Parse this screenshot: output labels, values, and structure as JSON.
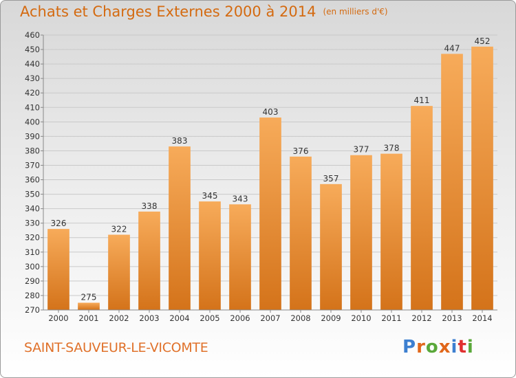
{
  "header": {
    "title": "Achats et Charges Externes 2000 à 2014",
    "unit": "(en milliers d'€)"
  },
  "footer": {
    "town": "SAINT-SAUVEUR-LE-VICOMTE",
    "logo": "Proxiti"
  },
  "colors": {
    "bar_light": "#f5a652",
    "bar_dark": "#d8761c",
    "title": "#d46a10",
    "logo": [
      "#3d7fd0",
      "#e1671b",
      "#5aa83a",
      "#e1671b",
      "#3d7fd0",
      "#e03030",
      "#5aa83a"
    ]
  },
  "chart_data": {
    "type": "bar",
    "title": "Achats et Charges Externes 2000 à 2014",
    "subtitle": "(en milliers d'€)",
    "categories": [
      "2000",
      "2001",
      "2002",
      "2003",
      "2004",
      "2005",
      "2006",
      "2007",
      "2008",
      "2009",
      "2010",
      "2011",
      "2012",
      "2013",
      "2014"
    ],
    "values": [
      326,
      275,
      322,
      338,
      383,
      345,
      343,
      403,
      376,
      357,
      377,
      378,
      411,
      447,
      452
    ],
    "ylim": [
      270,
      460
    ],
    "yticks": [
      270,
      280,
      290,
      300,
      310,
      320,
      330,
      340,
      350,
      360,
      370,
      380,
      390,
      400,
      410,
      420,
      430,
      440,
      450,
      460
    ],
    "grid": true,
    "legend": "none"
  }
}
